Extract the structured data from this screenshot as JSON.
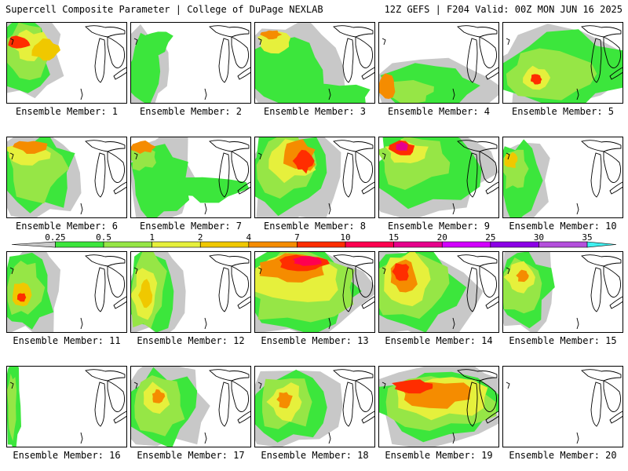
{
  "header": {
    "left": "Supercell Composite Parameter | College of DuPage NEXLAB",
    "right": "12Z GEFS | F204 Valid: 00Z MON JUN 16 2025"
  },
  "legend": {
    "ticks": [
      "0.25",
      "0.5",
      "1",
      "2",
      "4",
      "7",
      "10",
      "15",
      "20",
      "25",
      "30",
      "35"
    ],
    "colors": [
      "#c8c8c8",
      "#3ce63c",
      "#96e646",
      "#e6f03c",
      "#f0c800",
      "#f58c00",
      "#ff2d00",
      "#ff0050",
      "#e6008c",
      "#d200ff",
      "#8c00e6",
      "#b450dc",
      "#40f0f0"
    ]
  },
  "members": [
    {
      "label": "Ensemble Member: 1"
    },
    {
      "label": "Ensemble Member: 2"
    },
    {
      "label": "Ensemble Member: 3"
    },
    {
      "label": "Ensemble Member: 4"
    },
    {
      "label": "Ensemble Member: 5"
    },
    {
      "label": "Ensemble Member: 6"
    },
    {
      "label": "Ensemble Member: 7"
    },
    {
      "label": "Ensemble Member: 8"
    },
    {
      "label": "Ensemble Member: 9"
    },
    {
      "label": "Ensemble Member: 10"
    },
    {
      "label": "Ensemble Member: 11"
    },
    {
      "label": "Ensemble Member: 12"
    },
    {
      "label": "Ensemble Member: 13"
    },
    {
      "label": "Ensemble Member: 14"
    },
    {
      "label": "Ensemble Member: 15"
    },
    {
      "label": "Ensemble Member: 16"
    },
    {
      "label": "Ensemble Member: 17"
    },
    {
      "label": "Ensemble Member: 18"
    },
    {
      "label": "Ensemble Member: 19"
    },
    {
      "label": "Ensemble Member: 20"
    }
  ]
}
